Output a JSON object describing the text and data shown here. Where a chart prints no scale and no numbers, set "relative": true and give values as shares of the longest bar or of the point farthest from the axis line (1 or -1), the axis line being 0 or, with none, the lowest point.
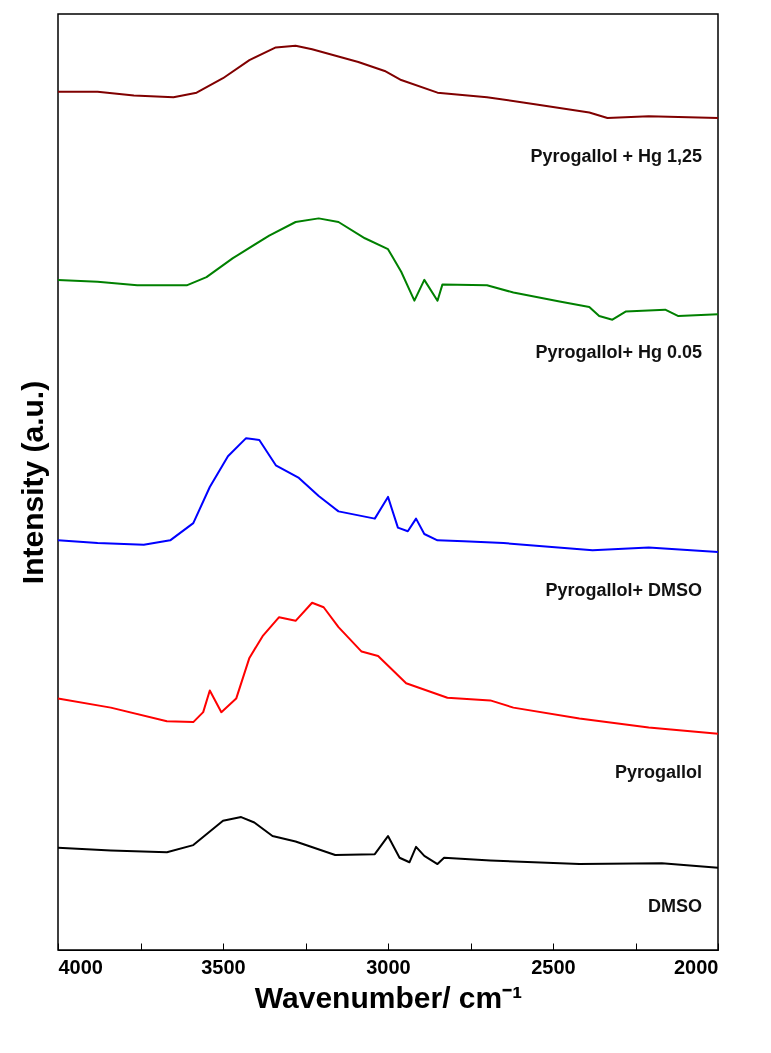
{
  "chart_data": {
    "type": "line",
    "relative": true,
    "xlabel": "Wavenumber/ cm⁻¹",
    "ylabel": "Intensity (a.u.)",
    "xlim": [
      4000,
      2000
    ],
    "xticks": [
      4000,
      {
        "value": 3750,
        "label": null
      },
      3500,
      {
        "value": 3250,
        "label": null
      },
      3000,
      {
        "value": 2750,
        "label": null
      },
      2500,
      {
        "value": 2250,
        "label": null
      },
      2000
    ],
    "legend": false,
    "grid": false,
    "series": [
      {
        "name": "Pyrogallol + Hg 1,25",
        "color": "#800000",
        "x": [
          4000,
          3880,
          3770,
          3650,
          3580,
          3500,
          3420,
          3340,
          3280,
          3230,
          3090,
          3010,
          2960,
          2850,
          2700,
          2550,
          2390,
          2335,
          2210,
          2000
        ],
        "values": [
          0.949,
          0.949,
          0.945,
          0.943,
          0.948,
          0.964,
          0.984,
          0.998,
          1.0,
          0.996,
          0.982,
          0.972,
          0.962,
          0.948,
          0.943,
          0.935,
          0.926,
          0.92,
          0.922,
          0.92
        ]
      },
      {
        "name": "Pyrogallol+ Hg 0.05",
        "color": "#008000",
        "x": [
          4000,
          3880,
          3760,
          3610,
          3550,
          3470,
          3360,
          3280,
          3210,
          3150,
          3070,
          3000,
          2960,
          2920,
          2890,
          2850,
          2835,
          2700,
          2620,
          2480,
          2390,
          2360,
          2320,
          2280,
          2160,
          2120,
          2000
        ],
        "values": [
          0.741,
          0.739,
          0.735,
          0.735,
          0.744,
          0.765,
          0.79,
          0.805,
          0.809,
          0.805,
          0.787,
          0.775,
          0.75,
          0.718,
          0.741,
          0.718,
          0.736,
          0.735,
          0.727,
          0.717,
          0.711,
          0.701,
          0.697,
          0.706,
          0.708,
          0.701,
          0.703
        ]
      },
      {
        "name": "Pyrogallol+ DMSO",
        "color": "#0000ff",
        "x": [
          4000,
          3880,
          3740,
          3660,
          3590,
          3540,
          3485,
          3430,
          3390,
          3340,
          3270,
          3210,
          3150,
          3040,
          3000,
          2970,
          2940,
          2915,
          2890,
          2850,
          2770,
          2650,
          2380,
          2210,
          2000
        ],
        "values": [
          0.453,
          0.45,
          0.448,
          0.453,
          0.472,
          0.512,
          0.546,
          0.566,
          0.564,
          0.536,
          0.522,
          0.502,
          0.485,
          0.477,
          0.501,
          0.467,
          0.463,
          0.477,
          0.46,
          0.453,
          0.452,
          0.45,
          0.442,
          0.445,
          0.44
        ]
      },
      {
        "name": "Pyrogallol",
        "color": "#ff0000",
        "x": [
          4000,
          3840,
          3670,
          3590,
          3560,
          3540,
          3505,
          3460,
          3420,
          3380,
          3330,
          3280,
          3230,
          3195,
          3150,
          3080,
          3030,
          2945,
          2820,
          2690,
          2620,
          2420,
          2210,
          2000
        ],
        "values": [
          0.278,
          0.268,
          0.253,
          0.252,
          0.263,
          0.287,
          0.263,
          0.278,
          0.323,
          0.347,
          0.368,
          0.364,
          0.384,
          0.379,
          0.357,
          0.33,
          0.325,
          0.295,
          0.279,
          0.276,
          0.268,
          0.256,
          0.246,
          0.239
        ]
      },
      {
        "name": "DMSO",
        "color": "#000000",
        "x": [
          4000,
          3840,
          3670,
          3590,
          3500,
          3445,
          3405,
          3350,
          3280,
          3160,
          3040,
          3000,
          2965,
          2935,
          2915,
          2890,
          2850,
          2830,
          2690,
          2420,
          2170,
          2000
        ],
        "values": [
          0.113,
          0.11,
          0.108,
          0.116,
          0.143,
          0.147,
          0.141,
          0.126,
          0.12,
          0.105,
          0.106,
          0.126,
          0.102,
          0.097,
          0.114,
          0.104,
          0.095,
          0.102,
          0.099,
          0.095,
          0.096,
          0.091
        ]
      }
    ]
  }
}
